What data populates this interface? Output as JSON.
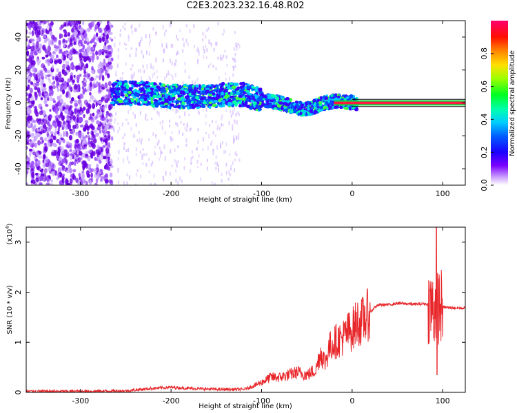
{
  "title": "C2E3.2023.232.16.48.R02",
  "colors": {
    "snr_line": "#e8262a",
    "spectrum_blob": "#6a00e0",
    "colorbar": [
      "#ff00ff",
      "#5b00ff",
      "#0000ff",
      "#00aaff",
      "#00ffcc",
      "#00ff00",
      "#aaff00",
      "#ffcc00",
      "#ff7f00",
      "#ff0000",
      "#ff006a"
    ]
  },
  "chart_data": [
    {
      "type": "heatmap",
      "xlabel": "Height of straight line (km)",
      "ylabel": "Frequency (Hz)",
      "xlim": [
        -360,
        125
      ],
      "ylim": [
        -50,
        50
      ],
      "x_ticks": [
        -300,
        -200,
        -100,
        0,
        100
      ],
      "y_ticks": [
        -40,
        -20,
        0,
        20,
        40
      ],
      "colorbar": {
        "label": "Normalized spectral amplitude",
        "range": [
          0,
          1
        ],
        "ticks": [
          "0.0",
          "0.2",
          "0.4",
          "0.6",
          "0.8"
        ]
      },
      "ridge_center": {
        "x": [
          -265,
          -240,
          -220,
          -200,
          -180,
          -160,
          -140,
          -120,
          -100,
          -80,
          -60,
          -50,
          -40,
          -30,
          -20,
          -10,
          0,
          20,
          60,
          90,
          125
        ],
        "y": [
          6,
          6,
          5,
          4,
          4,
          4,
          5,
          5,
          2,
          0,
          -3,
          -4,
          -2,
          0,
          1,
          1,
          0,
          0,
          0,
          0,
          0
        ]
      }
    },
    {
      "type": "line",
      "xlabel": "Height of straight line (km)",
      "ylabel": "SNR (10 * v/v)",
      "scale_note": "(x10",
      "scale_exp": "4",
      "xlim": [
        -360,
        125
      ],
      "ylim": [
        0,
        3.3
      ],
      "x_ticks": [
        -300,
        -200,
        -100,
        0,
        100
      ],
      "y_ticks": [
        0,
        1,
        2,
        3
      ],
      "series": [
        {
          "x": [
            -360,
            -300,
            -250,
            -220,
            -200,
            -180,
            -150,
            -120,
            -110,
            -100,
            -90,
            -80,
            -70,
            -60,
            -50,
            -40,
            -35,
            -30,
            -25,
            -20,
            -15,
            -10,
            -5,
            0,
            5,
            10,
            15,
            20,
            25,
            30,
            40,
            50,
            60,
            70,
            80,
            85,
            88,
            90,
            92,
            94,
            96,
            98,
            100,
            110,
            125
          ],
          "y": [
            0.02,
            0.02,
            0.03,
            0.08,
            0.1,
            0.08,
            0.06,
            0.06,
            0.12,
            0.2,
            0.3,
            0.3,
            0.35,
            0.4,
            0.35,
            0.45,
            0.8,
            0.6,
            0.9,
            1.0,
            1.05,
            1.1,
            1.2,
            1.25,
            1.4,
            1.4,
            1.5,
            1.6,
            1.7,
            1.75,
            1.75,
            1.78,
            1.77,
            1.76,
            1.77,
            1.75,
            1.7,
            1.6,
            1.75,
            1.8,
            1.72,
            1.7,
            1.7,
            1.69,
            1.68
          ]
        }
      ]
    }
  ]
}
